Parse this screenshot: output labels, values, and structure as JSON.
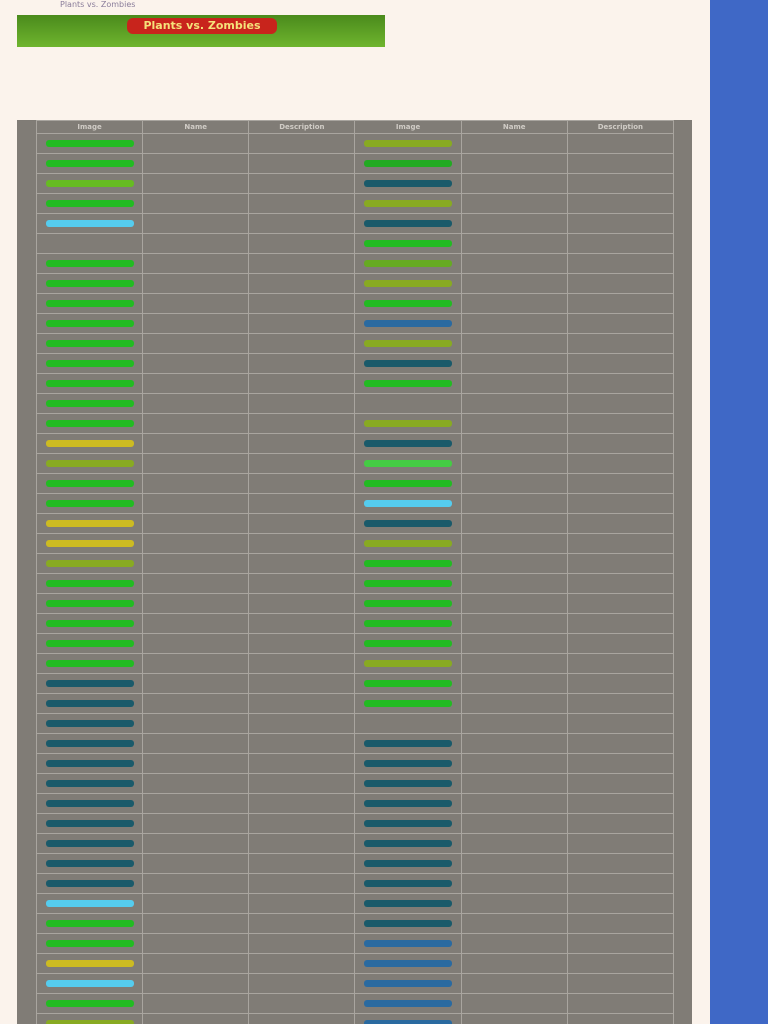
{
  "header": {
    "title": "Plants vs. Zombies"
  },
  "banner": {
    "logo": "Plants vs. Zombies"
  },
  "table": {
    "columns": [
      "Image",
      "Name",
      "Description",
      "Image",
      "Name",
      "Description"
    ],
    "rows": [
      {
        "left": "#22bb22",
        "right": "#88aa22"
      },
      {
        "left": "#22bb22",
        "right": "#22aa22"
      },
      {
        "left": "#66bb22",
        "right": "#1a5a6a"
      },
      {
        "left": "#22bb22",
        "right": "#88aa22"
      },
      {
        "left": "#55ccee",
        "right": "#1a5a6a"
      },
      {
        "left": "#807c76",
        "right": "#22bb22"
      },
      {
        "left": "#22bb22",
        "right": "#66aa22"
      },
      {
        "left": "#22bb22",
        "right": "#88aa22"
      },
      {
        "left": "#22bb22",
        "right": "#22bb22"
      },
      {
        "left": "#22bb22",
        "right": "#2a6aa0"
      },
      {
        "left": "#22bb22",
        "right": "#88aa22"
      },
      {
        "left": "#22bb22",
        "right": "#1a5a6a"
      },
      {
        "left": "#22bb22",
        "right": "#22bb22"
      },
      {
        "left": "#22bb22",
        "right": "#807c76"
      },
      {
        "left": "#22bb22",
        "right": "#88aa22"
      },
      {
        "left": "#ccbb22",
        "right": "#1a5a6a"
      },
      {
        "left": "#88aa22",
        "right": "#44cc44"
      },
      {
        "left": "#22bb22",
        "right": "#22bb22"
      },
      {
        "left": "#22bb22",
        "right": "#55ccee"
      },
      {
        "left": "#ccbb22",
        "right": "#1a5a6a"
      },
      {
        "left": "#ccbb22",
        "right": "#88aa22"
      },
      {
        "left": "#88aa22",
        "right": "#22bb22"
      },
      {
        "left": "#22bb22",
        "right": "#22bb22"
      },
      {
        "left": "#22bb22",
        "right": "#22bb22"
      },
      {
        "left": "#22bb22",
        "right": "#22bb22"
      },
      {
        "left": "#22bb22",
        "right": "#22bb22"
      },
      {
        "left": "#22bb22",
        "right": "#88aa22"
      },
      {
        "left": "#1a5a6a",
        "right": "#22bb22"
      },
      {
        "left": "#1a5a6a",
        "right": "#22bb22"
      },
      {
        "left": "#1a5a6a",
        "right": "#807c76"
      },
      {
        "left": "#1a5a6a",
        "right": "#1a5a6a"
      },
      {
        "left": "#1a5a6a",
        "right": "#1a5a6a"
      },
      {
        "left": "#1a5a6a",
        "right": "#1a5a6a"
      },
      {
        "left": "#1a5a6a",
        "right": "#1a5a6a"
      },
      {
        "left": "#1a5a6a",
        "right": "#1a5a6a"
      },
      {
        "left": "#1a5a6a",
        "right": "#1a5a6a"
      },
      {
        "left": "#1a5a6a",
        "right": "#1a5a6a"
      },
      {
        "left": "#1a5a6a",
        "right": "#1a5a6a"
      },
      {
        "left": "#55ccee",
        "right": "#1a5a6a"
      },
      {
        "left": "#22bb22",
        "right": "#1a5a6a"
      },
      {
        "left": "#22bb22",
        "right": "#2a6aa0"
      },
      {
        "left": "#ccbb22",
        "right": "#2a6aa0"
      },
      {
        "left": "#55ccee",
        "right": "#2a6aa0"
      },
      {
        "left": "#22bb22",
        "right": "#2a6aa0"
      },
      {
        "left": "#88aa22",
        "right": "#2a6aa0"
      },
      {
        "left": "#22bb22",
        "right": "#22bb22"
      }
    ]
  }
}
